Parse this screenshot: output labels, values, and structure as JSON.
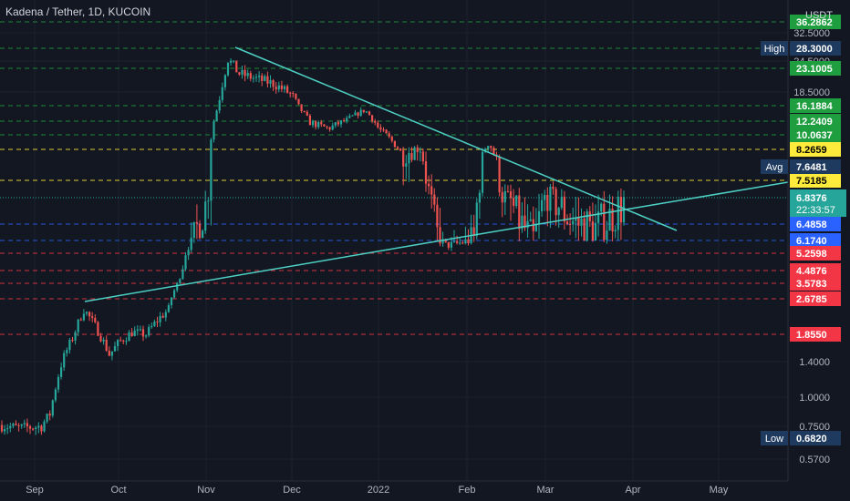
{
  "title": "Kadena / Tether, 1D, KUCOIN",
  "currency": "USDT",
  "colors": {
    "background": "#131722",
    "up": "#26a69a",
    "down": "#ef5350",
    "trendline": "#4dd0c4",
    "green_level": "#1e9e3e",
    "red_level": "#f23645",
    "yellow_level": "#ffeb3b",
    "blue_level": "#2962ff",
    "current": "#26a69a",
    "marker_bg": "#1e3a5f"
  },
  "chart_data": {
    "type": "candlestick",
    "scale": "log",
    "x_ticks": [
      "Sep",
      "Oct",
      "Nov",
      "Dec",
      "2022",
      "Feb",
      "Mar",
      "Apr",
      "May"
    ],
    "y_ticks": [
      "32.5000",
      "24.5000",
      "18.5000",
      "1.4000",
      "1.0000",
      "0.7500",
      "0.5700"
    ],
    "levels_green": [
      "36.2862",
      "28.3000",
      "23.1005",
      "16.1884",
      "12.2409",
      "10.0637"
    ],
    "levels_yellow": [
      "8.2659",
      "7.5185"
    ],
    "levels_blue": [
      "6.4858",
      "6.1740"
    ],
    "levels_red": [
      "5.2598",
      "4.4876",
      "3.5783",
      "2.6785",
      "1.8550"
    ],
    "current_price": "6.8376",
    "countdown": "22:33:57",
    "high_label": "High",
    "high_value": "28.3000",
    "low_label": "Low",
    "low_value": "0.6820",
    "avg_label": "Avg",
    "avg_value": "7.6481"
  }
}
